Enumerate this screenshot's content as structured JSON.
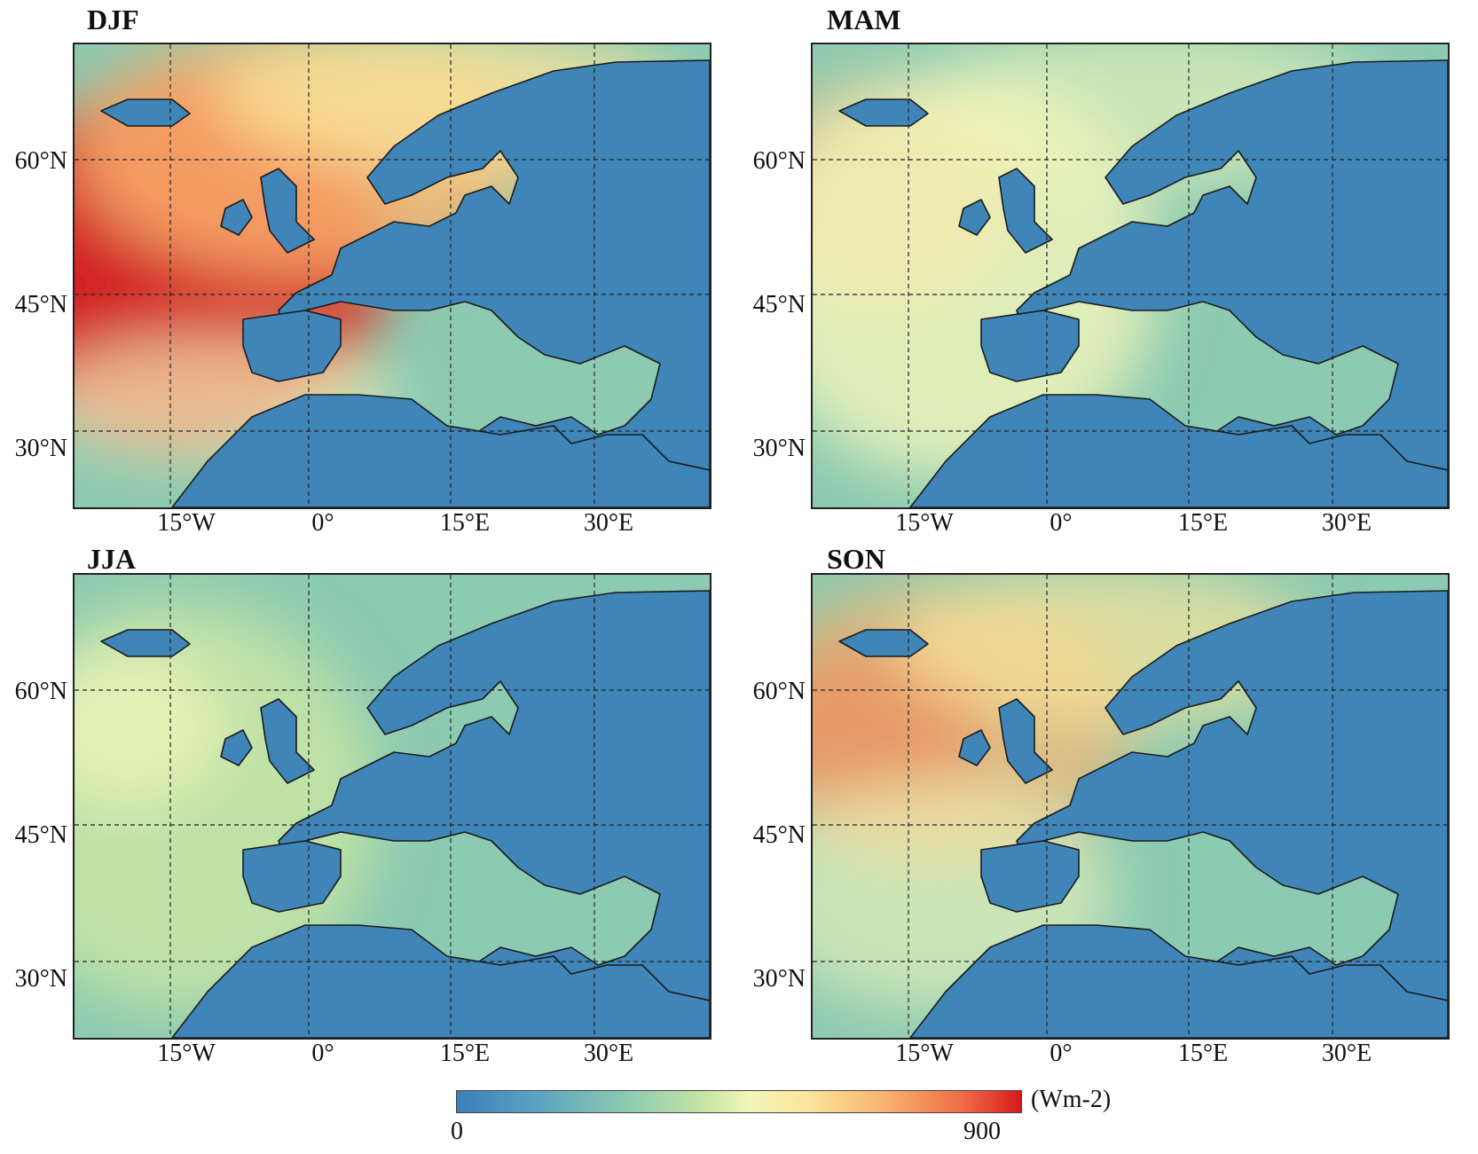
{
  "panels": [
    {
      "id": "djf",
      "title": "DJF",
      "scheme": "djf"
    },
    {
      "id": "mam",
      "title": "MAM",
      "scheme": "mam"
    },
    {
      "id": "jja",
      "title": "JJA",
      "scheme": "jja"
    },
    {
      "id": "son",
      "title": "SON",
      "scheme": "son"
    }
  ],
  "lat_labels": [
    "60°N",
    "45°N",
    "30°N"
  ],
  "lon_labels": [
    "15°W",
    "0°",
    "15°E",
    "30°E"
  ],
  "colorbar": {
    "min_label": "0",
    "max_label": "900",
    "unit": "(Wm-2)",
    "colors": [
      "#3b7fb8",
      "#5aa3c2",
      "#8ccab1",
      "#c8e6a5",
      "#f4f6bb",
      "#fbe59b",
      "#f9b26d",
      "#ef6a45",
      "#d7191c"
    ]
  },
  "colors": {
    "land": "#3f85b8",
    "ocean_low": "#8ccab1",
    "ocean_mid": "#f4f6bb",
    "ocean_high": "#d7191c"
  }
}
